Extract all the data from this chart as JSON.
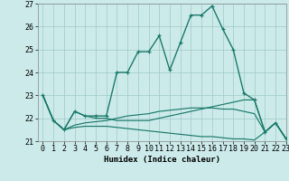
{
  "x": [
    0,
    1,
    2,
    3,
    4,
    5,
    6,
    7,
    8,
    9,
    10,
    11,
    12,
    13,
    14,
    15,
    16,
    17,
    18,
    19,
    20,
    21,
    22,
    23
  ],
  "line1": [
    23.0,
    21.9,
    21.5,
    22.3,
    22.1,
    22.1,
    22.1,
    24.0,
    24.0,
    24.9,
    24.9,
    25.6,
    24.1,
    25.3,
    26.5,
    26.5,
    26.9,
    25.9,
    25.0,
    23.1,
    22.8,
    21.4,
    21.8,
    21.1
  ],
  "line2": [
    23.0,
    21.9,
    21.5,
    22.3,
    22.1,
    22.0,
    22.0,
    21.9,
    21.9,
    21.9,
    21.9,
    22.0,
    22.1,
    22.2,
    22.3,
    22.4,
    22.5,
    22.6,
    22.7,
    22.8,
    22.8,
    21.4,
    21.8,
    21.1
  ],
  "line3": [
    23.0,
    21.9,
    21.5,
    21.7,
    21.8,
    21.85,
    21.9,
    22.0,
    22.1,
    22.15,
    22.2,
    22.3,
    22.35,
    22.4,
    22.45,
    22.45,
    22.45,
    22.4,
    22.4,
    22.3,
    22.2,
    21.4,
    21.8,
    21.1
  ],
  "line4": [
    23.0,
    21.9,
    21.5,
    21.6,
    21.65,
    21.65,
    21.65,
    21.6,
    21.55,
    21.5,
    21.45,
    21.4,
    21.35,
    21.3,
    21.25,
    21.2,
    21.2,
    21.15,
    21.1,
    21.1,
    21.05,
    21.4,
    21.8,
    21.1
  ],
  "color": "#1a7a6a",
  "bg_color": "#cceaea",
  "grid_color": "#9fc8c8",
  "xlabel": "Humidex (Indice chaleur)",
  "ylim": [
    21,
    27
  ],
  "xlim": [
    -0.5,
    23
  ],
  "yticks": [
    21,
    22,
    23,
    24,
    25,
    26,
    27
  ],
  "xticks": [
    0,
    1,
    2,
    3,
    4,
    5,
    6,
    7,
    8,
    9,
    10,
    11,
    12,
    13,
    14,
    15,
    16,
    17,
    18,
    19,
    20,
    21,
    22,
    23
  ],
  "xlabel_fontsize": 6.5,
  "tick_fontsize": 6,
  "marker_size": 3.5,
  "line_width": 1.0
}
